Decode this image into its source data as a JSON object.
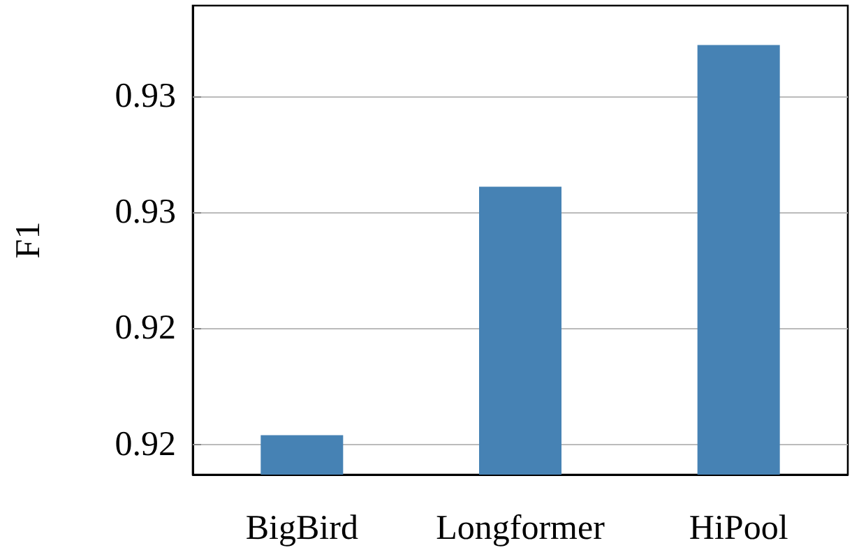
{
  "chart_data": {
    "type": "bar",
    "ylabel": "F1",
    "categories": [
      "BigBird",
      "Longformer",
      "HiPool"
    ],
    "values": [
      0.9154,
      0.9261,
      0.9322
    ],
    "color": "#4682b4",
    "ylim": [
      0.9137,
      0.9339
    ],
    "yticks": [
      {
        "value": 0.915,
        "label": "0.92"
      },
      {
        "value": 0.92,
        "label": "0.92"
      },
      {
        "value": 0.925,
        "label": "0.93"
      },
      {
        "value": 0.93,
        "label": "0.93"
      }
    ],
    "grid": "y"
  }
}
